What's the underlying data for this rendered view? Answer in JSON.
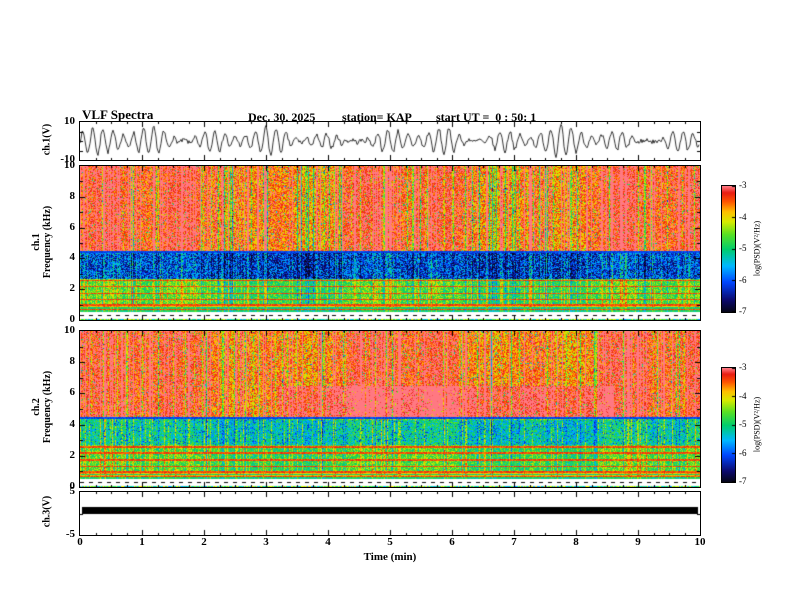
{
  "header": {
    "title": "VLF Spectra",
    "date": "Dec. 30, 2025",
    "station": "station= KAP",
    "start_ut": "start UT =  0 : 50: 1"
  },
  "xaxis": {
    "label": "Time (min)",
    "min": 0,
    "max": 10,
    "ticks": [
      0,
      1,
      2,
      3,
      4,
      5,
      6,
      7,
      8,
      9,
      10
    ]
  },
  "panels": {
    "ch1_wave": {
      "ylabel": "ch.1(V)"
    },
    "ch1_spec": {
      "line1": "ch.1",
      "line2": "Frequency (kHz)"
    },
    "ch2_spec": {
      "line1": "ch.2",
      "line2": "Frequency (kHz)"
    },
    "ch3_wave": {
      "ylabel": "ch.3(V)"
    }
  },
  "colorbar": {
    "label": "log(PSD)(V²/Hz)",
    "min": -7,
    "max": -3,
    "ticks": [
      -3,
      -4,
      -5,
      -6,
      -7
    ]
  },
  "chart_data": [
    {
      "type": "line",
      "panel": "ch1-waveform",
      "ylabel": "ch.1(V)",
      "xlim": [
        0,
        10
      ],
      "ylim": [
        -10,
        10
      ],
      "yticks": [
        10,
        -10
      ],
      "description": "Dense amplitude-modulated noisy burst waveform, black trace, peaks approximately +/-8 V, mean 0 V, continuous for full 10 minutes"
    },
    {
      "type": "heatmap",
      "panel": "ch1-spectrogram",
      "xlim": [
        0,
        10
      ],
      "ylim": [
        0,
        10
      ],
      "yticks": [
        10,
        8,
        6,
        4,
        2,
        0
      ],
      "zlabel": "log(PSD)(V²/Hz)",
      "zlim": [
        -7,
        -3
      ],
      "bands": [
        {
          "f_khz": [
            4.5,
            10
          ],
          "psd": -3.4,
          "note": "intense red with dense vertical streaks"
        },
        {
          "f_khz": [
            2.7,
            4.5
          ],
          "psd": -6.1,
          "note": "blue cyan band with dark speckles"
        },
        {
          "f_khz": [
            1.0,
            2.7
          ],
          "psd": -4.7,
          "note": "green-yellow mottled"
        },
        {
          "f_khz": [
            0.55,
            1.0
          ],
          "psd": -4.2,
          "note": "striped red green rows"
        },
        {
          "f_khz": [
            0.12,
            0.55
          ],
          "psd": null,
          "note": "white gap with dashed baseline"
        }
      ],
      "line_frequencies_khz": [
        0.7,
        1.0,
        1.35,
        1.75,
        2.2,
        2.6
      ],
      "dark_line_khz": 4.45,
      "vertical_streaks": true
    },
    {
      "type": "heatmap",
      "panel": "ch2-spectrogram",
      "xlim": [
        0,
        10
      ],
      "ylim": [
        0,
        10
      ],
      "yticks": [
        10,
        8,
        6,
        4,
        2,
        0
      ],
      "zlabel": "log(PSD)(V²/Hz)",
      "zlim": [
        -7,
        -3
      ],
      "bands": [
        {
          "f_khz": [
            4.5,
            10
          ],
          "psd": -3.4,
          "note": "intense red with dense vertical streaks"
        },
        {
          "f_khz": [
            2.7,
            4.5
          ],
          "psd": -5.2,
          "note": "green band with speckles"
        },
        {
          "f_khz": [
            1.0,
            2.7
          ],
          "psd": -4.7,
          "note": "green-yellow mottled"
        },
        {
          "f_khz": [
            0.55,
            1.0
          ],
          "psd": -4.2,
          "note": "striped red green rows"
        },
        {
          "f_khz": [
            0.12,
            0.55
          ],
          "psd": null,
          "note": "white gap with dashed baseline"
        }
      ],
      "mid_blob": {
        "t_min": [
          3.2,
          8.6
        ],
        "f_khz": [
          4.3,
          6.5
        ],
        "psd_boost": 0.6
      },
      "line_frequencies_khz": [
        0.7,
        1.0,
        1.35,
        1.75,
        2.2,
        2.6
      ],
      "dark_line_khz": 4.45,
      "vertical_streaks": true
    },
    {
      "type": "line",
      "panel": "ch3-waveform",
      "ylabel": "ch.3(V)",
      "xlim": [
        0,
        10
      ],
      "ylim": [
        -5,
        5
      ],
      "yticks": [
        5,
        -5
      ],
      "description": "Flat saturated thick black band from approximately +1 V to 0 V spanning the entire record"
    }
  ]
}
